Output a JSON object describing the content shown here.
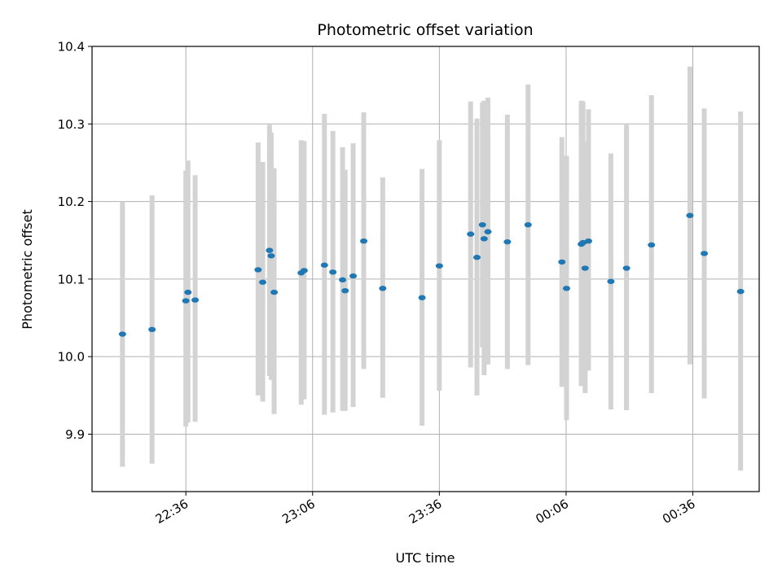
{
  "chart_data": {
    "type": "scatter",
    "title": "Photometric offset variation",
    "xlabel": "UTC time",
    "ylabel": "Photometric offset",
    "x_tick_labels": [
      "22:36",
      "23:06",
      "23:36",
      "00:06",
      "00:36"
    ],
    "x_tick_minutes": [
      1356,
      1386,
      1416,
      1446,
      1476
    ],
    "xlim_minutes": [
      1333.8,
      1491.7
    ],
    "y_ticks": [
      "9.9",
      "10.0",
      "10.1",
      "10.2",
      "10.3",
      "10.4"
    ],
    "ylim": [
      9.826,
      10.4
    ],
    "grid": true,
    "colors": {
      "point": "#1f77b4",
      "errorbar": "#d3d3d3",
      "grid": "#b0b0b0"
    },
    "points": [
      {
        "t": 1341.0,
        "y": 10.029,
        "lo": 9.858,
        "hi": 10.2
      },
      {
        "t": 1348.0,
        "y": 10.035,
        "lo": 9.862,
        "hi": 10.208
      },
      {
        "t": 1356.0,
        "y": 10.072,
        "lo": 9.91,
        "hi": 10.24
      },
      {
        "t": 1356.5,
        "y": 10.083,
        "lo": 9.915,
        "hi": 10.253
      },
      {
        "t": 1358.2,
        "y": 10.073,
        "lo": 9.916,
        "hi": 10.234
      },
      {
        "t": 1373.1,
        "y": 10.112,
        "lo": 9.95,
        "hi": 10.276
      },
      {
        "t": 1374.2,
        "y": 10.096,
        "lo": 9.942,
        "hi": 10.251
      },
      {
        "t": 1375.8,
        "y": 10.137,
        "lo": 9.975,
        "hi": 10.299
      },
      {
        "t": 1376.2,
        "y": 10.13,
        "lo": 9.97,
        "hi": 10.289
      },
      {
        "t": 1376.9,
        "y": 10.083,
        "lo": 9.926,
        "hi": 10.243
      },
      {
        "t": 1383.3,
        "y": 10.108,
        "lo": 9.938,
        "hi": 10.279
      },
      {
        "t": 1384.0,
        "y": 10.111,
        "lo": 9.945,
        "hi": 10.278
      },
      {
        "t": 1388.8,
        "y": 10.118,
        "lo": 9.925,
        "hi": 10.313
      },
      {
        "t": 1390.8,
        "y": 10.109,
        "lo": 9.928,
        "hi": 10.291
      },
      {
        "t": 1393.1,
        "y": 10.099,
        "lo": 9.93,
        "hi": 10.27
      },
      {
        "t": 1393.7,
        "y": 10.085,
        "lo": 9.93,
        "hi": 10.241
      },
      {
        "t": 1395.6,
        "y": 10.104,
        "lo": 9.935,
        "hi": 10.275
      },
      {
        "t": 1398.1,
        "y": 10.149,
        "lo": 9.984,
        "hi": 10.315
      },
      {
        "t": 1402.6,
        "y": 10.088,
        "lo": 9.947,
        "hi": 10.231
      },
      {
        "t": 1411.9,
        "y": 10.076,
        "lo": 9.911,
        "hi": 10.242
      },
      {
        "t": 1416.0,
        "y": 10.117,
        "lo": 9.956,
        "hi": 10.279
      },
      {
        "t": 1423.4,
        "y": 10.158,
        "lo": 9.986,
        "hi": 10.329
      },
      {
        "t": 1424.9,
        "y": 10.128,
        "lo": 9.95,
        "hi": 10.307
      },
      {
        "t": 1426.2,
        "y": 10.17,
        "lo": 10.012,
        "hi": 10.328
      },
      {
        "t": 1426.6,
        "y": 10.152,
        "lo": 9.976,
        "hi": 10.33
      },
      {
        "t": 1427.5,
        "y": 10.161,
        "lo": 9.99,
        "hi": 10.334
      },
      {
        "t": 1432.1,
        "y": 10.148,
        "lo": 9.984,
        "hi": 10.312
      },
      {
        "t": 1437.0,
        "y": 10.17,
        "lo": 9.989,
        "hi": 10.351
      },
      {
        "t": 1445.0,
        "y": 10.122,
        "lo": 9.961,
        "hi": 10.283
      },
      {
        "t": 1446.1,
        "y": 10.088,
        "lo": 9.918,
        "hi": 10.259
      },
      {
        "t": 1449.6,
        "y": 10.145,
        "lo": 9.962,
        "hi": 10.33
      },
      {
        "t": 1450.0,
        "y": 10.147,
        "lo": 9.965,
        "hi": 10.329
      },
      {
        "t": 1450.5,
        "y": 10.114,
        "lo": 9.953,
        "hi": 10.277
      },
      {
        "t": 1451.3,
        "y": 10.149,
        "lo": 9.982,
        "hi": 10.319
      },
      {
        "t": 1456.6,
        "y": 10.097,
        "lo": 9.932,
        "hi": 10.262
      },
      {
        "t": 1460.3,
        "y": 10.114,
        "lo": 9.931,
        "hi": 10.299
      },
      {
        "t": 1466.2,
        "y": 10.144,
        "lo": 9.953,
        "hi": 10.337
      },
      {
        "t": 1475.3,
        "y": 10.182,
        "lo": 9.99,
        "hi": 10.374
      },
      {
        "t": 1478.7,
        "y": 10.133,
        "lo": 9.946,
        "hi": 10.32
      },
      {
        "t": 1487.3,
        "y": 10.084,
        "lo": 9.853,
        "hi": 10.316
      }
    ]
  }
}
